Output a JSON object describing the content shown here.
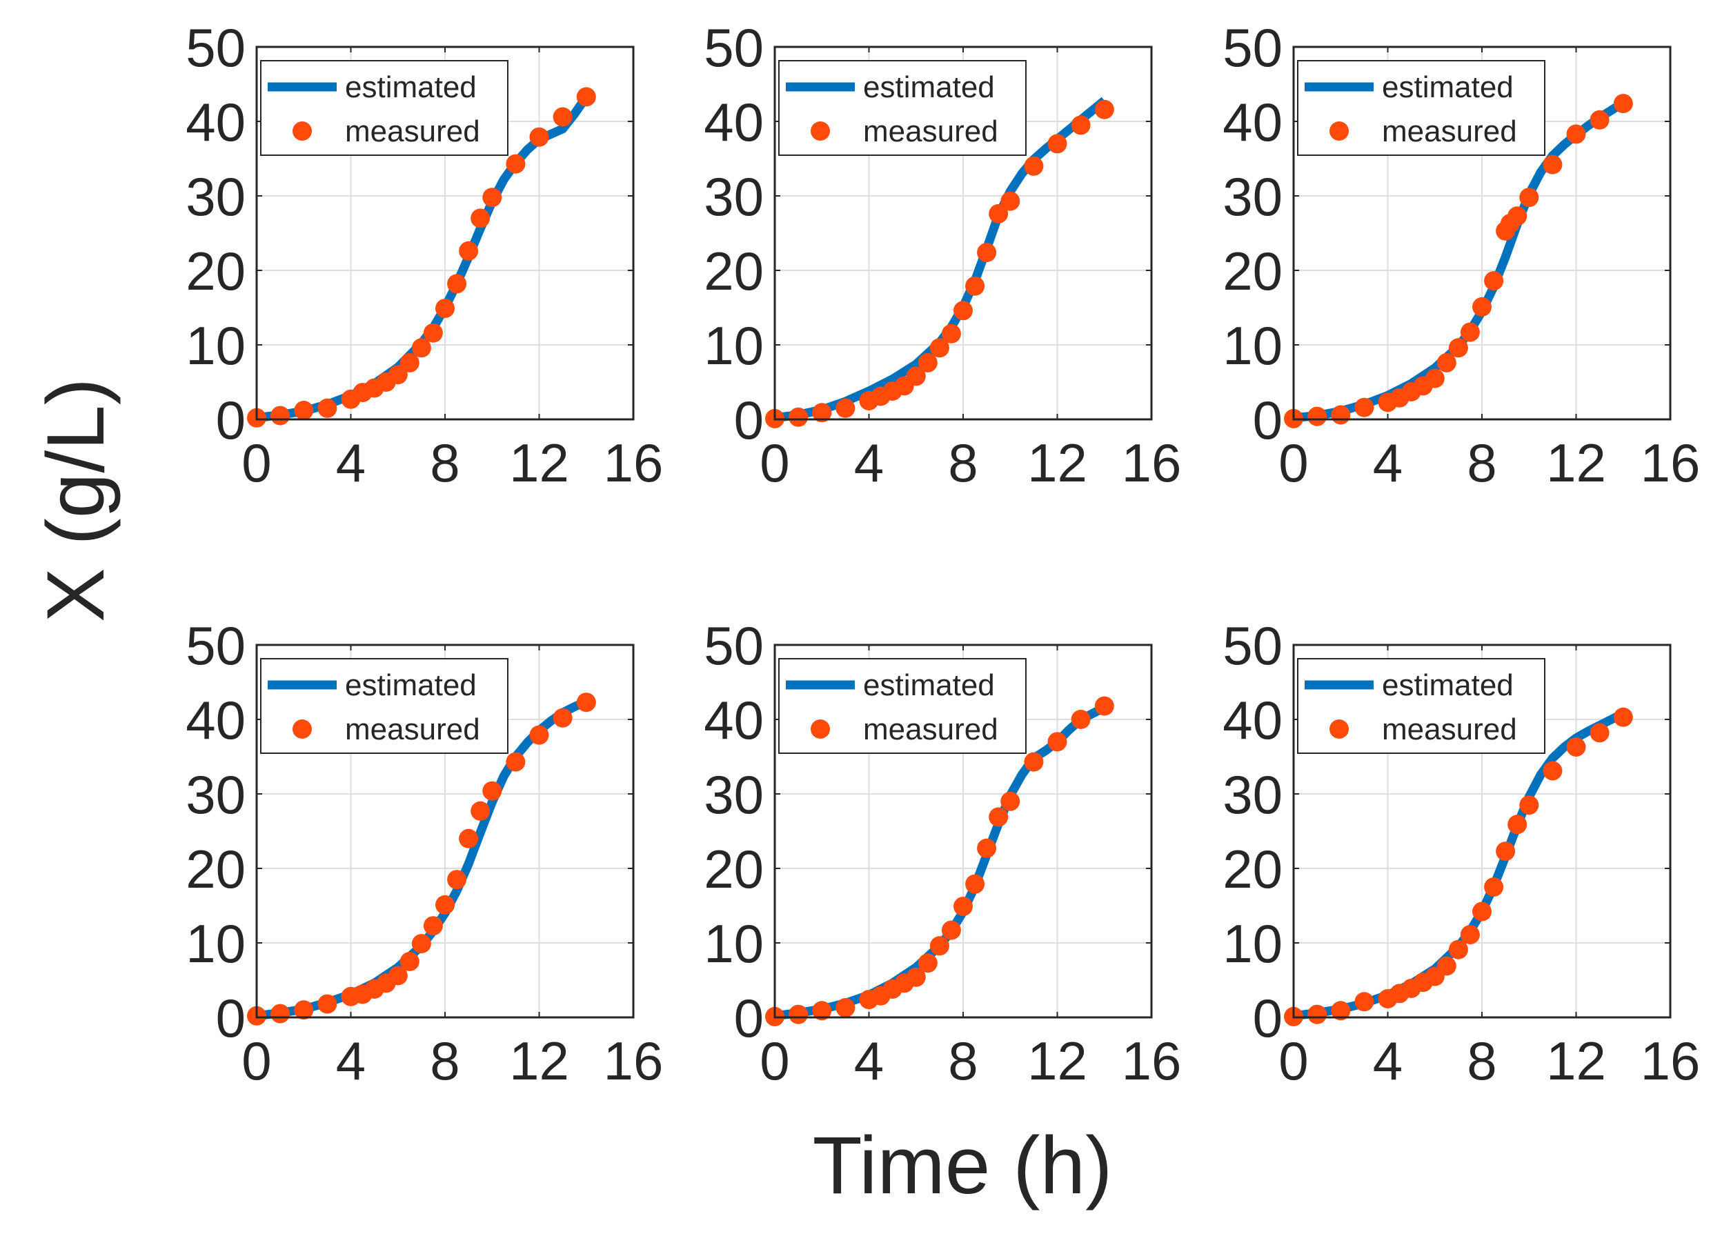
{
  "figure": {
    "xlabel": "Time (h)",
    "ylabel": "X (g/L)",
    "colors": {
      "estimated": "#0072BD",
      "measured": "#FF4A0A",
      "grid": "#DEDEDE",
      "axis": "#262626"
    }
  },
  "chart_data": [
    {
      "type": "line",
      "xlim": [
        0,
        16
      ],
      "ylim": [
        0,
        50
      ],
      "xticks": [
        "0",
        "4",
        "8",
        "12",
        "16"
      ],
      "yticks": [
        "0",
        "10",
        "20",
        "30",
        "40",
        "50"
      ],
      "grid": true,
      "legend_position": "top-left",
      "series": [
        {
          "name": "estimated",
          "style": "line",
          "x": [
            0,
            1,
            2,
            3,
            4,
            5,
            6,
            7,
            7.5,
            8,
            8.5,
            9,
            9.5,
            10,
            10.5,
            11,
            11.5,
            12,
            12.5,
            13,
            13.5,
            14
          ],
          "y": [
            0.2,
            0.6,
            1.1,
            2.0,
            3.2,
            4.8,
            7.0,
            10.2,
            12.3,
            15.0,
            18.2,
            21.8,
            25.6,
            29.2,
            32.2,
            34.4,
            36.2,
            37.6,
            38.3,
            39.0,
            41.0,
            43.3
          ]
        },
        {
          "name": "measured",
          "style": "markers",
          "x": [
            0,
            1,
            2,
            3,
            4,
            4.5,
            5,
            5.5,
            6,
            6.5,
            7,
            7.5,
            8,
            8.5,
            9,
            9.5,
            10,
            11,
            12,
            13,
            14
          ],
          "y": [
            0.2,
            0.5,
            1.2,
            1.5,
            2.7,
            3.6,
            4.2,
            5.0,
            6.0,
            7.6,
            9.6,
            11.6,
            14.9,
            18.2,
            22.6,
            27.0,
            29.8,
            34.3,
            37.9,
            40.6,
            43.3
          ]
        }
      ]
    },
    {
      "type": "line",
      "xlim": [
        0,
        16
      ],
      "ylim": [
        0,
        50
      ],
      "xticks": [
        "0",
        "4",
        "8",
        "12",
        "16"
      ],
      "yticks": [
        "0",
        "10",
        "20",
        "30",
        "40",
        "50"
      ],
      "grid": true,
      "legend_position": "top-left",
      "series": [
        {
          "name": "estimated",
          "style": "line",
          "x": [
            0,
            1,
            2,
            3,
            4,
            5,
            6,
            7,
            7.5,
            8,
            8.5,
            9,
            9.5,
            10,
            10.5,
            11,
            11.5,
            12,
            12.5,
            13,
            13.5,
            14
          ],
          "y": [
            0.2,
            0.6,
            1.3,
            2.4,
            3.8,
            5.4,
            7.4,
            10.3,
            12.4,
            15.1,
            18.6,
            22.9,
            27.4,
            30.6,
            33.0,
            34.9,
            36.3,
            37.6,
            38.9,
            40.2,
            41.5,
            42.8
          ]
        },
        {
          "name": "measured",
          "style": "markers",
          "x": [
            0,
            1,
            2,
            3,
            4,
            4.5,
            5,
            5.5,
            6,
            6.5,
            7,
            7.5,
            8,
            8.5,
            9,
            9.5,
            10,
            11,
            12,
            13,
            14
          ],
          "y": [
            0.1,
            0.3,
            0.9,
            1.5,
            2.5,
            3.1,
            3.8,
            4.5,
            5.8,
            7.6,
            9.6,
            11.5,
            14.6,
            17.9,
            22.4,
            27.6,
            29.3,
            34.0,
            37.0,
            39.5,
            41.6
          ]
        }
      ]
    },
    {
      "type": "line",
      "xlim": [
        0,
        16
      ],
      "ylim": [
        0,
        50
      ],
      "xticks": [
        "0",
        "4",
        "8",
        "12",
        "16"
      ],
      "yticks": [
        "0",
        "10",
        "20",
        "30",
        "40",
        "50"
      ],
      "grid": true,
      "legend_position": "top-left",
      "series": [
        {
          "name": "estimated",
          "style": "line",
          "x": [
            0,
            1,
            2,
            3,
            4,
            5,
            6,
            7,
            7.5,
            8,
            8.5,
            9,
            9.5,
            10,
            10.5,
            11,
            11.5,
            12,
            12.5,
            13,
            13.5,
            14
          ],
          "y": [
            0.2,
            0.5,
            1.1,
            2.0,
            3.2,
            4.8,
            6.9,
            9.8,
            11.9,
            14.5,
            17.8,
            21.8,
            26.2,
            30.2,
            33.2,
            35.4,
            36.9,
            38.2,
            39.4,
            40.5,
            41.5,
            42.5
          ]
        },
        {
          "name": "measured",
          "style": "markers",
          "x": [
            0,
            1,
            2,
            3,
            4,
            4.5,
            5,
            5.5,
            6,
            6.5,
            7,
            7.5,
            8,
            8.5,
            9,
            9.2,
            9.5,
            10,
            11,
            12,
            13,
            14
          ],
          "y": [
            0.1,
            0.4,
            0.6,
            1.6,
            2.3,
            2.9,
            3.7,
            4.5,
            5.5,
            7.6,
            9.6,
            11.7,
            15.1,
            18.6,
            25.3,
            26.3,
            27.3,
            29.8,
            34.2,
            38.3,
            40.2,
            42.4
          ]
        }
      ]
    },
    {
      "type": "line",
      "xlim": [
        0,
        16
      ],
      "ylim": [
        0,
        50
      ],
      "xticks": [
        "0",
        "4",
        "8",
        "12",
        "16"
      ],
      "yticks": [
        "0",
        "10",
        "20",
        "30",
        "40",
        "50"
      ],
      "grid": true,
      "legend_position": "top-left",
      "series": [
        {
          "name": "estimated",
          "style": "line",
          "x": [
            0,
            1,
            2,
            3,
            4,
            5,
            6,
            7,
            7.5,
            8,
            8.5,
            9,
            9.5,
            10,
            10.5,
            11,
            11.5,
            12,
            12.5,
            13,
            13.5,
            14
          ],
          "y": [
            0.2,
            0.6,
            1.1,
            2.0,
            3.1,
            4.6,
            6.7,
            9.6,
            11.6,
            14.0,
            17.0,
            20.6,
            24.8,
            28.9,
            32.4,
            35.0,
            36.9,
            38.5,
            39.8,
            40.9,
            41.7,
            42.4
          ]
        },
        {
          "name": "measured",
          "style": "markers",
          "x": [
            0,
            1,
            2,
            3,
            4,
            4.5,
            5,
            5.5,
            6,
            6.5,
            7,
            7.5,
            8,
            8.5,
            9,
            9.5,
            10,
            11,
            12,
            13,
            14
          ],
          "y": [
            0.2,
            0.5,
            1.0,
            1.8,
            2.8,
            3.1,
            3.8,
            4.6,
            5.6,
            7.5,
            9.9,
            12.3,
            15.1,
            18.5,
            24.0,
            27.7,
            30.4,
            34.3,
            37.9,
            40.2,
            42.3
          ]
        }
      ]
    },
    {
      "type": "line",
      "xlim": [
        0,
        16
      ],
      "ylim": [
        0,
        50
      ],
      "xticks": [
        "0",
        "4",
        "8",
        "12",
        "16"
      ],
      "yticks": [
        "0",
        "10",
        "20",
        "30",
        "40",
        "50"
      ],
      "grid": true,
      "legend_position": "top-left",
      "series": [
        {
          "name": "estimated",
          "style": "line",
          "x": [
            0,
            1,
            2,
            3,
            4,
            5,
            6,
            7,
            7.5,
            8,
            8.5,
            9,
            9.5,
            10,
            10.5,
            11,
            11.5,
            12,
            12.5,
            13,
            13.5,
            14
          ],
          "y": [
            0.2,
            0.6,
            1.1,
            1.9,
            3.0,
            4.6,
            6.7,
            9.6,
            11.6,
            14.2,
            17.6,
            21.8,
            26.0,
            29.8,
            32.6,
            34.8,
            35.8,
            37.0,
            38.6,
            40.0,
            40.8,
            41.6
          ]
        },
        {
          "name": "measured",
          "style": "markers",
          "x": [
            0,
            1,
            2,
            3,
            4,
            4.5,
            5,
            5.5,
            6,
            6.5,
            7,
            7.5,
            8,
            8.5,
            9,
            9.5,
            10,
            11,
            12,
            13,
            14
          ],
          "y": [
            0.1,
            0.4,
            0.9,
            1.3,
            2.4,
            2.9,
            3.8,
            4.6,
            5.4,
            7.3,
            9.6,
            11.7,
            14.9,
            17.9,
            22.7,
            26.9,
            29.0,
            34.3,
            37.0,
            40.0,
            41.8
          ]
        }
      ]
    },
    {
      "type": "line",
      "xlim": [
        0,
        16
      ],
      "ylim": [
        0,
        50
      ],
      "xticks": [
        "0",
        "4",
        "8",
        "12",
        "16"
      ],
      "yticks": [
        "0",
        "10",
        "20",
        "30",
        "40",
        "50"
      ],
      "grid": true,
      "legend_position": "top-left",
      "series": [
        {
          "name": "estimated",
          "style": "line",
          "x": [
            0,
            1,
            2,
            3,
            4,
            5,
            6,
            7,
            7.5,
            8,
            8.5,
            9,
            9.5,
            10,
            10.5,
            11,
            11.5,
            12,
            12.5,
            13,
            13.5,
            14
          ],
          "y": [
            0.2,
            0.6,
            1.1,
            1.9,
            3.0,
            4.5,
            6.5,
            9.5,
            11.6,
            14.2,
            17.6,
            21.6,
            25.8,
            29.6,
            32.6,
            34.8,
            36.3,
            37.5,
            38.4,
            39.2,
            40.0,
            40.8
          ]
        },
        {
          "name": "measured",
          "style": "markers",
          "x": [
            0,
            1,
            2,
            3,
            4,
            4.5,
            5,
            5.5,
            6,
            6.5,
            7,
            7.5,
            8,
            8.5,
            9,
            9.5,
            10,
            11,
            12,
            13,
            14
          ],
          "y": [
            0.1,
            0.4,
            0.9,
            2.1,
            2.5,
            3.2,
            3.9,
            4.7,
            5.5,
            6.9,
            9.1,
            11.1,
            14.2,
            17.5,
            22.3,
            25.9,
            28.5,
            33.1,
            36.3,
            38.2,
            40.3
          ]
        }
      ]
    }
  ]
}
